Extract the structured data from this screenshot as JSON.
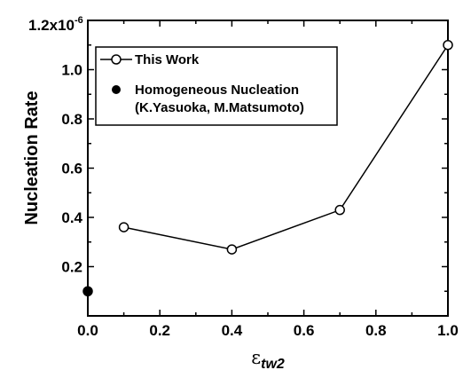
{
  "chart_data": {
    "type": "scatter",
    "ylabel": "Nucleation Rate",
    "xlabel_symbol": "ε",
    "xlabel_subscript": "tw2",
    "y_multiplier_label": "1.2x10",
    "y_multiplier_exponent": "-6",
    "xlim": [
      0.0,
      1.0
    ],
    "ylim": [
      0.0,
      1.2
    ],
    "x_ticks": [
      "0.0",
      "0.2",
      "0.4",
      "0.6",
      "0.8",
      "1.0"
    ],
    "y_ticks": [
      "0.2",
      "0.4",
      "0.6",
      "0.8",
      "1.0"
    ],
    "legend_position": "top-left",
    "series": [
      {
        "name": "This Work",
        "marker": "open-circle",
        "line": true,
        "color": "#000000",
        "x": [
          0.1,
          0.4,
          0.7,
          1.0
        ],
        "y": [
          0.36,
          0.27,
          0.43,
          1.1
        ]
      },
      {
        "name": "Homogeneous Nucleation",
        "name_line2": "(K.Yasuoka, M.Matsumoto)",
        "marker": "filled-circle",
        "line": false,
        "color": "#000000",
        "x": [
          0.0
        ],
        "y": [
          0.1
        ]
      }
    ]
  }
}
